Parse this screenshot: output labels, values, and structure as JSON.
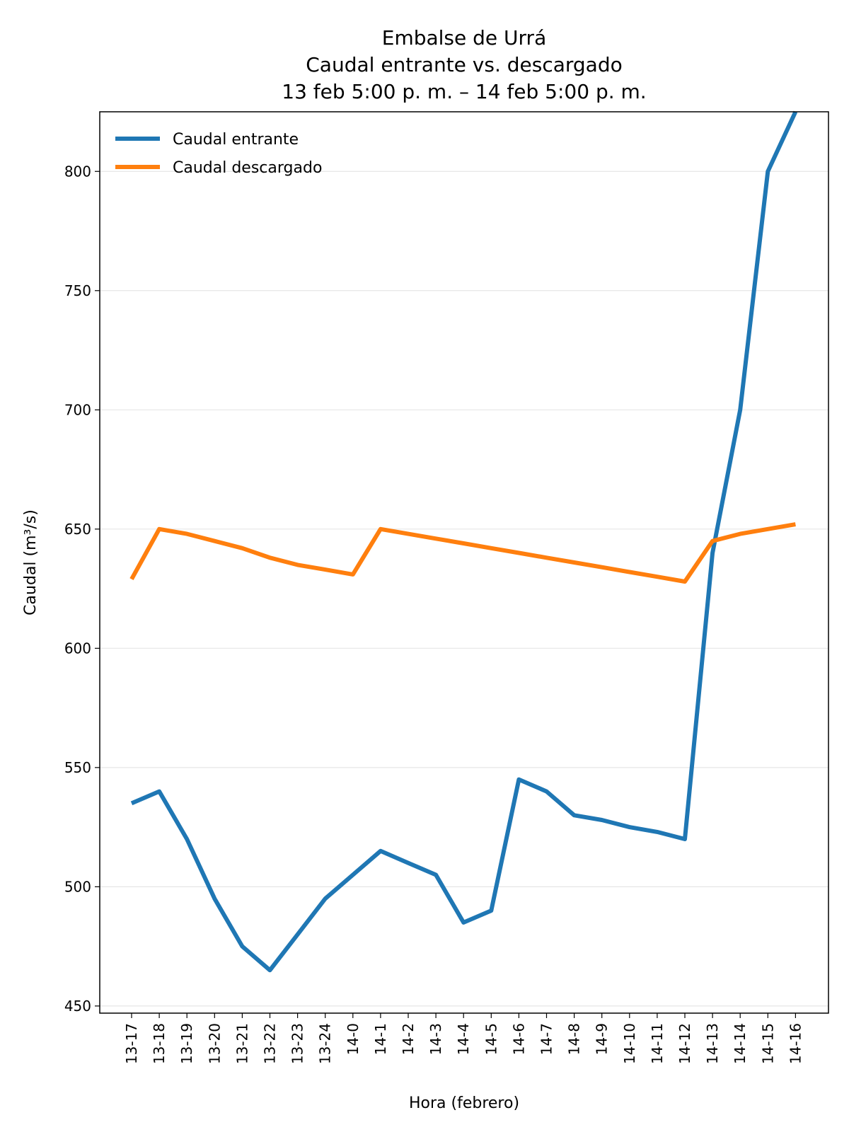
{
  "chart_data": {
    "type": "line",
    "title_lines": [
      "Embalse de Urrá",
      "Caudal entrante vs. descargado",
      "13 feb 5:00 p. m. – 14 feb 5:00 p. m."
    ],
    "xlabel": "Hora (febrero)",
    "ylabel": "Caudal (m³/s)",
    "ylim": [
      447,
      825
    ],
    "yticks": [
      450,
      500,
      550,
      600,
      650,
      700,
      750,
      800
    ],
    "grid": "horizontal",
    "legend_position": "top-left",
    "categories": [
      "13-17",
      "13-18",
      "13-19",
      "13-20",
      "13-21",
      "13-22",
      "13-23",
      "13-24",
      "14-0",
      "14-1",
      "14-2",
      "14-3",
      "14-4",
      "14-5",
      "14-6",
      "14-7",
      "14-8",
      "14-9",
      "14-10",
      "14-11",
      "14-12",
      "14-13",
      "14-14",
      "14-15",
      "14-16"
    ],
    "series": [
      {
        "name": "Caudal entrante",
        "color": "#1f77b4",
        "values": [
          535,
          540,
          520,
          495,
          475,
          465,
          480,
          495,
          505,
          515,
          510,
          505,
          485,
          490,
          545,
          540,
          530,
          528,
          525,
          523,
          520,
          640,
          700,
          800,
          825
        ]
      },
      {
        "name": "Caudal descargado",
        "color": "#ff7f0e",
        "values": [
          629,
          650,
          648,
          645,
          642,
          638,
          635,
          633,
          631,
          650,
          648,
          646,
          644,
          642,
          640,
          638,
          636,
          634,
          632,
          630,
          628,
          645,
          648,
          650,
          652
        ]
      }
    ]
  }
}
